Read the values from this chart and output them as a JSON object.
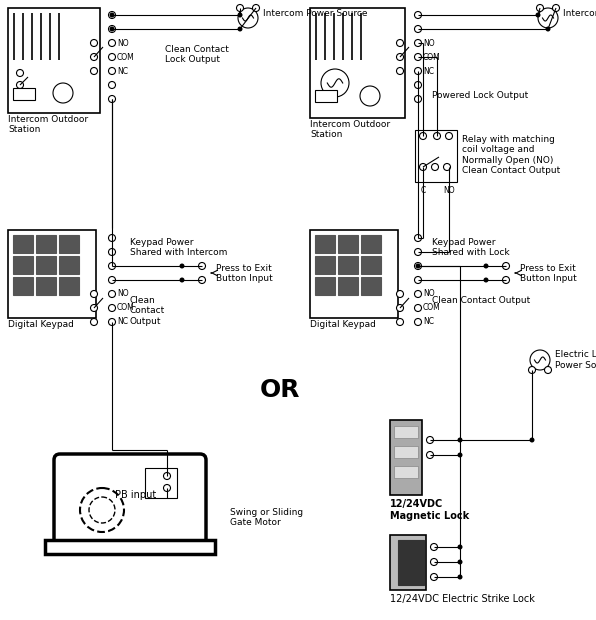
{
  "bg_color": "#ffffff",
  "lc": "#000000",
  "labels": {
    "icom_pwr_left": "Intercom Power Source",
    "clean_contact_lock": "Clean Contact\nLock Output",
    "icom_station_left": "Intercom Outdoor\nStation",
    "kp_pwr_intercom": "Keypad Power\nShared with Intercom",
    "press_exit_left": "Press to Exit\nButton Input",
    "clean_contact_out_left": "Clean\nContact\nOutput",
    "digital_kp_left": "Digital Keypad",
    "or_label": "OR",
    "swing_gate": "Swing or Sliding\nGate Motor",
    "pb_input": "PB input",
    "icom_pwr_right": "Intercom Power Source",
    "powered_lock_out": "Powered Lock Output",
    "icom_station_right": "Intercom Outdoor\nStation",
    "relay_label": "Relay with matching\ncoil voltage and\nNormally Open (NO)\nClean Contact Output",
    "kp_pwr_lock": "Keypad Power\nShared with Lock",
    "press_exit_right": "Press to Exit\nButton Input",
    "clean_contact_out_right": "Clean Contact Output",
    "digital_kp_right": "Digital Keypad",
    "elec_lock_pwr": "Electric Lock\nPower Source",
    "mag_lock": "12/24VDC\nMagnetic Lock",
    "elec_strike": "12/24VDC Electric Strike Lock"
  }
}
